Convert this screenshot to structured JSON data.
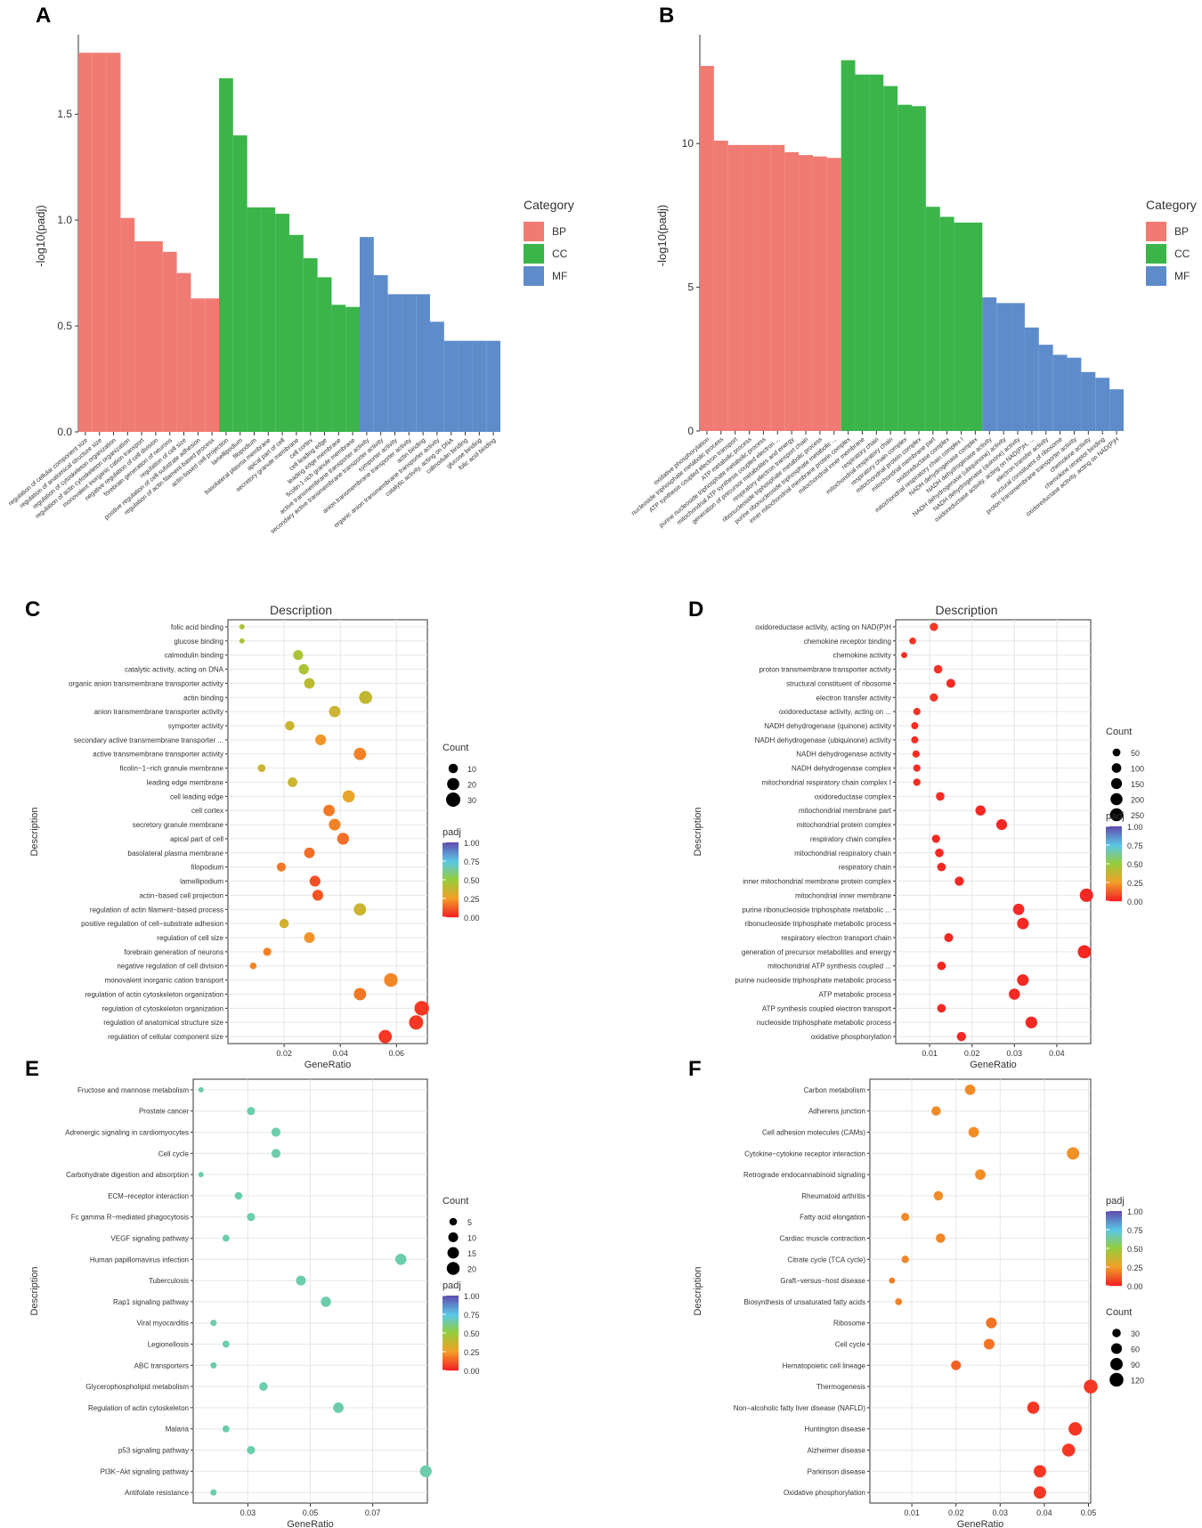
{
  "panel_labels": [
    "A",
    "B",
    "C",
    "D",
    "E",
    "F"
  ],
  "colors": {
    "BP": "#F07B73",
    "CC": "#3BB54A",
    "MF": "#5E8CCB",
    "panel_bg": "#ffffff",
    "grid": "#e6e6e6",
    "teal": "#6CCCAE"
  },
  "chart_data": [
    {
      "panel": "A",
      "type": "bar",
      "ylabel": "-log10(padj)",
      "ylim": [
        0,
        1.85
      ],
      "yticks": [
        0.0,
        0.5,
        1.0,
        1.5
      ],
      "legend": {
        "title": "Category",
        "entries": [
          "BP",
          "CC",
          "MF"
        ]
      },
      "categories": [
        "regulation of cellular component size",
        "regulation of anatomical structure size",
        "regulation of cytoskeleton organization",
        "regulation of actin cytoskeleton organization",
        "monovalent inorganic cation transport",
        "negative regulation of cell division",
        "forebrain generation of neurons",
        "regulation of cell size",
        "positive regulation of cell-substrate adhesion",
        "regulation of actin filament-based process",
        "actin-based cell projection",
        "lamellipodium",
        "filopodium",
        "basolateral plasma membrane",
        "apical part of cell",
        "secretory granule membrane",
        "cell cortex",
        "cell leading edge",
        "leading edge membrane",
        "ficolin-1-rich granule membrane",
        "active transmembrane transporter activity",
        "secondary active transmembrane transporter activity",
        "symporter activity",
        "anion transmembrane transporter activity",
        "actin binding",
        "organic anion transmembrane transporter activity",
        "catalytic activity, acting on DNA",
        "calmodulin binding",
        "glucose binding",
        "folic acid binding"
      ],
      "groups": [
        "BP",
        "BP",
        "BP",
        "BP",
        "BP",
        "BP",
        "BP",
        "BP",
        "BP",
        "BP",
        "CC",
        "CC",
        "CC",
        "CC",
        "CC",
        "CC",
        "CC",
        "CC",
        "CC",
        "CC",
        "MF",
        "MF",
        "MF",
        "MF",
        "MF",
        "MF",
        "MF",
        "MF",
        "MF",
        "MF"
      ],
      "values": [
        1.79,
        1.79,
        1.79,
        1.01,
        0.9,
        0.9,
        0.85,
        0.75,
        0.63,
        0.63,
        1.67,
        1.4,
        1.06,
        1.06,
        1.03,
        0.93,
        0.82,
        0.73,
        0.6,
        0.59,
        0.92,
        0.74,
        0.65,
        0.65,
        0.65,
        0.52,
        0.43,
        0.43,
        0.43,
        0.43
      ]
    },
    {
      "panel": "B",
      "type": "bar",
      "ylabel": "-log10(padj)",
      "ylim": [
        0,
        13.6
      ],
      "yticks": [
        0,
        5,
        10
      ],
      "legend": {
        "title": "Category",
        "entries": [
          "BP",
          "CC",
          "MF"
        ]
      },
      "categories": [
        "oxidative phosphorylation",
        "nucleoside triphosphate metabolic process",
        "ATP synthesis coupled electron transport",
        "ATP metabolic process",
        "purine nucleoside triphosphate metabolic process",
        "mitochondrial ATP synthesis coupled electron ...",
        "generation of precursor metabolites and energy",
        "respiratory electron transport chain",
        "ribonucleoside triphosphate metabolic process",
        "purine ribonucleoside triphosphate metabolic ...",
        "inner mitochondrial membrane protein complex",
        "mitochondrial inner membrane",
        "respiratory chain",
        "mitochondrial respiratory chain",
        "respiratory chain complex",
        "mitochondrial protein complex",
        "mitochondrial membrane part",
        "oxidoreductase complex",
        "mitochondrial respiratory chain complex I",
        "NADH dehydrogenase complex",
        "NADH dehydrogenase activity",
        "NADH dehydrogenase (ubiquinone) activity",
        "NADH dehydrogenase (quinone) activity",
        "oxidoreductase activity, acting on NAD(P)H, ...",
        "electron transfer activity",
        "structural constituent of ribosome",
        "proton transmembrane transporter activity",
        "chemokine activity",
        "chemokine receptor binding",
        "oxidoreductase activity, acting on NAD(P)H"
      ],
      "groups": [
        "BP",
        "BP",
        "BP",
        "BP",
        "BP",
        "BP",
        "BP",
        "BP",
        "BP",
        "BP",
        "CC",
        "CC",
        "CC",
        "CC",
        "CC",
        "CC",
        "CC",
        "CC",
        "CC",
        "CC",
        "MF",
        "MF",
        "MF",
        "MF",
        "MF",
        "MF",
        "MF",
        "MF",
        "MF",
        "MF"
      ],
      "values": [
        12.7,
        10.1,
        9.95,
        9.95,
        9.95,
        9.95,
        9.7,
        9.6,
        9.55,
        9.5,
        12.9,
        12.4,
        12.4,
        12.0,
        11.35,
        11.3,
        7.8,
        7.45,
        7.25,
        7.25,
        4.65,
        4.45,
        4.45,
        3.6,
        3.0,
        2.65,
        2.55,
        2.05,
        1.85,
        1.45
      ]
    },
    {
      "panel": "C",
      "type": "scatter",
      "title": "Description",
      "xlabel": "GeneRatio",
      "ylabel": "Description",
      "xlim": [
        0.0,
        0.071
      ],
      "xticks": [
        0.02,
        0.04,
        0.06
      ],
      "xtick_labels": [
        "0.02",
        "0.04",
        "0.06"
      ],
      "size_legend": {
        "title": "Count",
        "values": [
          10,
          20,
          30
        ]
      },
      "color_legend": {
        "title": "padj",
        "labels": [
          "1.00",
          "0.75",
          "0.50",
          "0.25",
          "0.00"
        ]
      },
      "size_range": [
        1,
        35
      ],
      "terms": [
        "folic acid binding",
        "glucose binding",
        "calmodulin binding",
        "catalytic activity, acting on DNA",
        "organic anion transmembrane transporter activity",
        "actin binding",
        "anion transmembrane transporter activity",
        "symporter activity",
        "secondary active transmembrane transporter ...",
        "active transmembrane transporter activity",
        "ficolin−1−rich granule membrane",
        "leading edge membrane",
        "cell leading edge",
        "cell cortex",
        "secretory granule membrane",
        "apical part of cell",
        "basolateral plasma membrane",
        "filopodium",
        "lamellipodium",
        "actin−based cell projection",
        "regulation of actin filament−based process",
        "positive regulation of cell−substrate adhesion",
        "regulation of cell size",
        "forebrain generation of neurons",
        "negative regulation of cell division",
        "monovalent inorganic cation transport",
        "regulation of actin cytoskeleton organization",
        "regulation of cytoskeleton organization",
        "regulation of anatomical structure size",
        "regulation of cellular component size"
      ],
      "x": [
        0.005,
        0.005,
        0.025,
        0.027,
        0.029,
        0.049,
        0.038,
        0.022,
        0.033,
        0.047,
        0.012,
        0.023,
        0.043,
        0.036,
        0.038,
        0.041,
        0.029,
        0.019,
        0.031,
        0.032,
        0.047,
        0.02,
        0.029,
        0.014,
        0.009,
        0.058,
        0.047,
        0.069,
        0.067,
        0.056
      ],
      "count": [
        2,
        2,
        12,
        13,
        14,
        24,
        17,
        10,
        15,
        21,
        6,
        11,
        20,
        17,
        18,
        19,
        14,
        9,
        15,
        15,
        21,
        10,
        14,
        7,
        4,
        27,
        21,
        32,
        30,
        25
      ],
      "padj": [
        0.43,
        0.43,
        0.45,
        0.44,
        0.4,
        0.38,
        0.36,
        0.35,
        0.23,
        0.19,
        0.36,
        0.36,
        0.28,
        0.17,
        0.19,
        0.15,
        0.15,
        0.17,
        0.09,
        0.1,
        0.36,
        0.34,
        0.22,
        0.19,
        0.2,
        0.2,
        0.17,
        0.04,
        0.04,
        0.04
      ]
    },
    {
      "panel": "D",
      "type": "scatter",
      "title": "Description",
      "xlabel": "GeneRatio",
      "ylabel": "Description",
      "xlim": [
        0.002,
        0.048
      ],
      "xticks": [
        0.01,
        0.02,
        0.03,
        0.04
      ],
      "xtick_labels": [
        "0.01",
        "0.02",
        "0.03",
        "0.04"
      ],
      "size_legend": {
        "title": "Count",
        "values": [
          50,
          100,
          150,
          200,
          250
        ]
      },
      "color_legend": {
        "title": "padj",
        "labels": [
          "1.00",
          "0.75",
          "0.50",
          "0.25",
          "0.00"
        ]
      },
      "size_range": [
        5,
        270
      ],
      "terms": [
        "oxidoreductase activity, acting on NAD(P)H",
        "chemokine receptor binding",
        "chemokine activity",
        "proton transmembrane transporter activity",
        "structural constituent of ribosome",
        "electron transfer activity",
        "oxidoreductase activity, acting on ...",
        "NADH dehydrogenase (quinone) activity",
        "NADH dehydrogenase (ubiquinone) activity",
        "NADH dehydrogenase activity",
        "NADH dehydrogenase complex",
        "mitochondrial respiratory chain complex I",
        "oxidoreductase complex",
        "mitochondrial membrane part",
        "mitochondrial protein complex",
        "respiratory chain complex",
        "mitochondrial respiratory chain",
        "respiratory chain",
        "inner mitochondrial membrane protein complex",
        "mitochondrial inner membrane",
        "purine ribonucleoside triphosphate metabolic ...",
        "ribonucleoside triphosphate metabolic process",
        "respiratory electron transport chain",
        "generation of precursor metabolites and energy",
        "mitochondrial ATP synthesis coupled ...",
        "purine nucleoside triphosphate metabolic process",
        "ATP metabolic process",
        "ATP synthesis coupled electron transport",
        "nucleoside triphosphate metabolic process",
        "oxidative phosphorylation"
      ],
      "x": [
        0.011,
        0.006,
        0.004,
        0.012,
        0.015,
        0.011,
        0.007,
        0.0065,
        0.0065,
        0.0068,
        0.007,
        0.007,
        0.0125,
        0.022,
        0.027,
        0.0115,
        0.0123,
        0.0128,
        0.017,
        0.047,
        0.031,
        0.032,
        0.0145,
        0.0465,
        0.0128,
        0.032,
        0.03,
        0.0128,
        0.034,
        0.0175
      ],
      "count": [
        60,
        30,
        20,
        70,
        80,
        60,
        40,
        35,
        35,
        40,
        40,
        40,
        70,
        120,
        150,
        60,
        70,
        70,
        90,
        270,
        170,
        180,
        80,
        260,
        70,
        180,
        160,
        70,
        190,
        90
      ],
      "padj": [
        0.04,
        0.03,
        0.03,
        0.03,
        0.02,
        0.03,
        0.03,
        0.02,
        0.02,
        0.02,
        0.02,
        0.02,
        0.02,
        0.01,
        0.01,
        0.01,
        0.01,
        0.01,
        0.01,
        0.01,
        0.01,
        0.01,
        0.01,
        0.01,
        0.01,
        0.01,
        0.01,
        0.01,
        0.01,
        0.01
      ]
    },
    {
      "panel": "E",
      "type": "scatter",
      "xlabel": "GeneRatio",
      "ylabel": "Description",
      "xlim": [
        0.0125,
        0.0875
      ],
      "xticks": [
        0.03,
        0.05,
        0.07
      ],
      "xtick_labels": [
        "0.03",
        "0.05",
        "0.07"
      ],
      "size_legend": {
        "title": "Count",
        "values": [
          5,
          10,
          15,
          20
        ]
      },
      "color_legend": {
        "title": "padj",
        "labels": [
          "1.00",
          "0.75",
          "0.50",
          "0.25",
          "0.00"
        ]
      },
      "size_range": [
        1,
        22
      ],
      "terms": [
        "Fructose and mannose metabolism",
        "Prostate cancer",
        "Adrenergic signaling in cardiomyocytes",
        "Cell cycle",
        "Carbohydrate digestion and absorption",
        "ECM−receptor interaction",
        "Fc gamma R−mediated phagocytosis",
        "VEGF signaling pathway",
        "Human papillomavirus infection",
        "Tuberculosis",
        "Rap1 signaling pathway",
        "Viral myocarditis",
        "Legionellosis",
        "ABC transporters",
        "Glycerophospholipid metabolism",
        "Regulation of actin cytoskeleton",
        "Malaria",
        "p53 signaling pathway",
        "PI3K−Akt signaling pathway",
        "Antifolate resistance"
      ],
      "x": [
        0.015,
        0.031,
        0.039,
        0.039,
        0.015,
        0.027,
        0.031,
        0.023,
        0.079,
        0.047,
        0.055,
        0.019,
        0.023,
        0.019,
        0.035,
        0.059,
        0.023,
        0.031,
        0.087,
        0.019
      ],
      "count": [
        2,
        6,
        8,
        8,
        2,
        5,
        6,
        4,
        14,
        10,
        11,
        3,
        4,
        3,
        7,
        12,
        4,
        6,
        16,
        3
      ],
      "padj": [
        0.52,
        0.52,
        0.52,
        0.52,
        0.52,
        0.52,
        0.52,
        0.52,
        0.52,
        0.52,
        0.52,
        0.52,
        0.52,
        0.52,
        0.52,
        0.52,
        0.52,
        0.52,
        0.52,
        0.52
      ]
    },
    {
      "panel": "F",
      "type": "scatter",
      "xlabel": "GeneRatio",
      "ylabel": "Description",
      "xlim": [
        0.0005,
        0.0505
      ],
      "xticks": [
        0.01,
        0.02,
        0.03,
        0.04,
        0.05
      ],
      "xtick_labels": [
        "0.01",
        "0.02",
        "0.03",
        "0.04",
        "0.05"
      ],
      "size_legend": {
        "title": "Count",
        "values": [
          30,
          60,
          90,
          120
        ]
      },
      "color_legend": {
        "title": "padj",
        "labels": [
          "1.00",
          "0.75",
          "0.50",
          "0.25",
          "0.00"
        ]
      },
      "size_range": [
        5,
        130
      ],
      "terms": [
        "Carbon metabolism",
        "Adherens junction",
        "Cell adhesion molecules (CAMs)",
        "Cytokine−cytokine receptor interaction",
        "Retrograde endocannabinoid signaling",
        "Rheumatoid arthritis",
        "Fatty acid elongation",
        "Cardiac muscle contraction",
        "Citrate cycle (TCA cycle)",
        "Graft−versus−host disease",
        "Biosynthesis of unsaturated fatty acids",
        "Ribosome",
        "Cell cycle",
        "Hematopoietic cell lineage",
        "Thermogenesis",
        "Non−alcoholic fatty liver disease (NAFLD)",
        "Huntington disease",
        "Alzheimer disease",
        "Parkinson disease",
        "Oxidative phosphorylation"
      ],
      "x": [
        0.0232,
        0.0155,
        0.024,
        0.0465,
        0.0255,
        0.016,
        0.0085,
        0.0165,
        0.0085,
        0.0055,
        0.007,
        0.028,
        0.0275,
        0.02,
        0.0505,
        0.0375,
        0.047,
        0.0455,
        0.039,
        0.039
      ],
      "count": [
        55,
        40,
        55,
        90,
        55,
        40,
        25,
        40,
        20,
        10,
        15,
        60,
        60,
        45,
        120,
        85,
        110,
        100,
        90,
        90
      ],
      "padj": [
        0.21,
        0.21,
        0.21,
        0.22,
        0.21,
        0.21,
        0.2,
        0.2,
        0.2,
        0.18,
        0.19,
        0.16,
        0.16,
        0.12,
        0.04,
        0.04,
        0.04,
        0.04,
        0.04,
        0.04
      ]
    }
  ]
}
